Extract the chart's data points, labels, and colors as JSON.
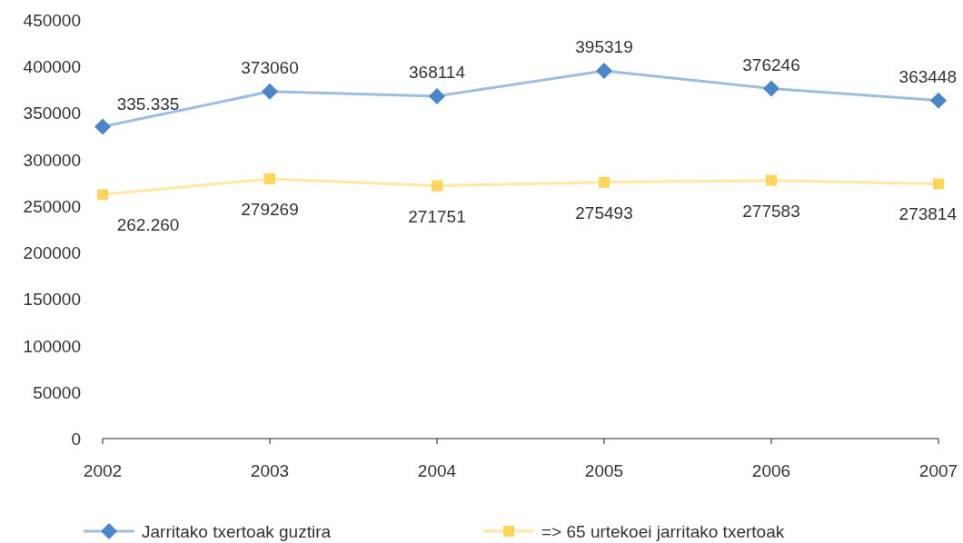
{
  "chart_data": {
    "type": "line",
    "categories": [
      "2002",
      "2003",
      "2004",
      "2005",
      "2006",
      "2007"
    ],
    "ylim": [
      0,
      450000
    ],
    "yticks": [
      0,
      50000,
      100000,
      150000,
      200000,
      250000,
      300000,
      350000,
      400000,
      450000
    ],
    "grid": false,
    "legend": "bottom",
    "data_labels": true,
    "series": [
      {
        "name": "Jarritako txertoak guztira",
        "color": "#4a86c8",
        "marker": "diamond",
        "values": [
          335335,
          373060,
          368114,
          395319,
          376246,
          363448
        ],
        "value_labels": [
          "335.335",
          "373060",
          "368114",
          "395319",
          "376246",
          "363448"
        ]
      },
      {
        "name": "=> 65 urtekoei jarritako txertoak",
        "color": "#fdd55a",
        "marker": "square",
        "values": [
          262260,
          279269,
          271751,
          275493,
          277583,
          273814
        ],
        "value_labels": [
          "262.260",
          "279269",
          "271751",
          "275493",
          "277583",
          "273814"
        ]
      }
    ]
  }
}
